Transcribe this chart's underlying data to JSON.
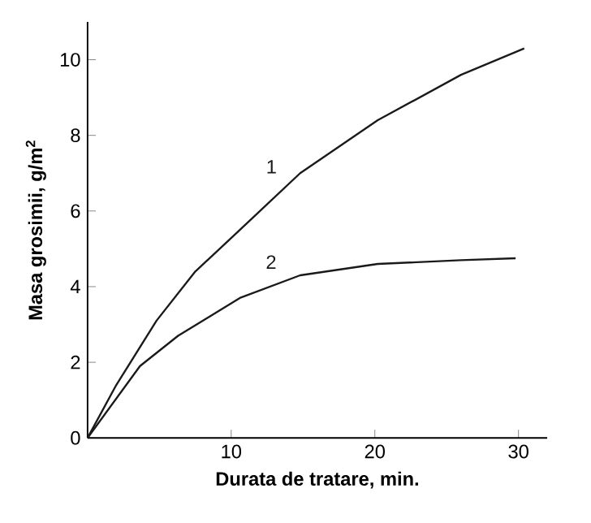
{
  "chart_data": {
    "type": "line",
    "xlabel": "Durata de tratare, min.",
    "ylabel": "Masa grosimii, g/m$^{2}$",
    "xlim": [
      0,
      32
    ],
    "ylim": [
      0,
      11
    ],
    "xticks": [
      10,
      20,
      30
    ],
    "yticks": [
      0,
      2,
      4,
      6,
      8,
      10
    ],
    "grid": false,
    "legend": false,
    "marker": "none",
    "line_style": "solid",
    "series": [
      {
        "name": "1",
        "color": "#1a1a1a",
        "x": [
          0,
          2,
          4.8,
          7.5,
          10.6,
          14.8,
          20.2,
          26,
          30.4
        ],
        "values": [
          0,
          1.4,
          3.1,
          4.4,
          5.5,
          7.0,
          8.4,
          9.6,
          10.3
        ]
      },
      {
        "name": "2",
        "color": "#1a1a1a",
        "x": [
          0,
          3.65,
          6.3,
          10.6,
          14.8,
          20.2,
          26,
          29.8
        ],
        "values": [
          0,
          1.9,
          2.7,
          3.7,
          4.3,
          4.6,
          4.7,
          4.75
        ]
      }
    ]
  }
}
